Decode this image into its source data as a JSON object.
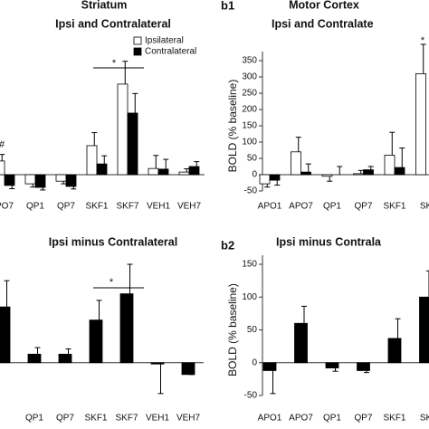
{
  "chart_data": [
    {
      "type": "bar",
      "title": "Striatum",
      "subtitle": "Ipsi and Contralateral",
      "categories": [
        "PO7",
        "QP1",
        "QP7",
        "SKF1",
        "SKF7",
        "VEH1",
        "VEH7"
      ],
      "series": [
        {
          "name": "Ipsilateral",
          "color": "#ffffff",
          "values": [
            42,
            -28,
            -20,
            89,
            278,
            19,
            8
          ],
          "errors": [
            20,
            10,
            8,
            40,
            70,
            40,
            10
          ]
        },
        {
          "name": "Contralateral",
          "color": "#000000",
          "values": [
            -33,
            -39,
            -36,
            33,
            189,
            17,
            25
          ],
          "errors": [
            10,
            8,
            8,
            25,
            60,
            30,
            15
          ]
        }
      ],
      "ylim": [
        -50,
        350
      ],
      "annotations": [
        "*",
        "#"
      ]
    },
    {
      "type": "bar",
      "panel_label": "b1",
      "title": "Motor Cortex",
      "subtitle": "Ipsi and Contralate",
      "ylabel": "BOLD (% baseline)",
      "categories": [
        "APO1",
        "APO7",
        "QP1",
        "QP7",
        "SKF1",
        "SK"
      ],
      "series": [
        {
          "name": "Ipsilateral",
          "color": "#ffffff",
          "values": [
            -28,
            70,
            -5,
            3,
            60,
            310
          ],
          "errors": [
            10,
            45,
            15,
            10,
            70,
            90
          ]
        },
        {
          "name": "Contralateral",
          "color": "#000000",
          "values": [
            -17,
            8,
            0,
            15,
            22,
            null
          ],
          "errors": [
            15,
            25,
            25,
            10,
            60,
            null
          ]
        }
      ],
      "ylim": [
        -50,
        350
      ],
      "yticks": [
        -50,
        0,
        50,
        100,
        150,
        200,
        250,
        300,
        350
      ],
      "annotations": [
        "*"
      ]
    },
    {
      "type": "bar",
      "title": "Ipsi minus Contralateral",
      "categories": [
        null,
        "QP1",
        "QP7",
        "SKF1",
        "SKF7",
        "VEH1",
        "VEH7"
      ],
      "values": [
        85,
        13,
        13,
        65,
        105,
        -2,
        -18
      ],
      "errors": [
        40,
        10,
        8,
        30,
        45,
        45,
        0
      ],
      "color": "#000000",
      "ylim": [
        -50,
        150
      ],
      "annotations": [
        "*"
      ]
    },
    {
      "type": "bar",
      "panel_label": "b2",
      "title": "Ipsi minus Contrala",
      "ylabel": "BOLD (% baseline)",
      "categories": [
        "APO1",
        "APO7",
        "QP1",
        "QP7",
        "SKF1",
        "SK"
      ],
      "values": [
        -12,
        60,
        -8,
        -12,
        37,
        100
      ],
      "errors": [
        35,
        26,
        5,
        3,
        30,
        40
      ],
      "color": "#000000",
      "ylim": [
        -50,
        150
      ],
      "yticks": [
        -50,
        0,
        50,
        100,
        150
      ]
    }
  ]
}
